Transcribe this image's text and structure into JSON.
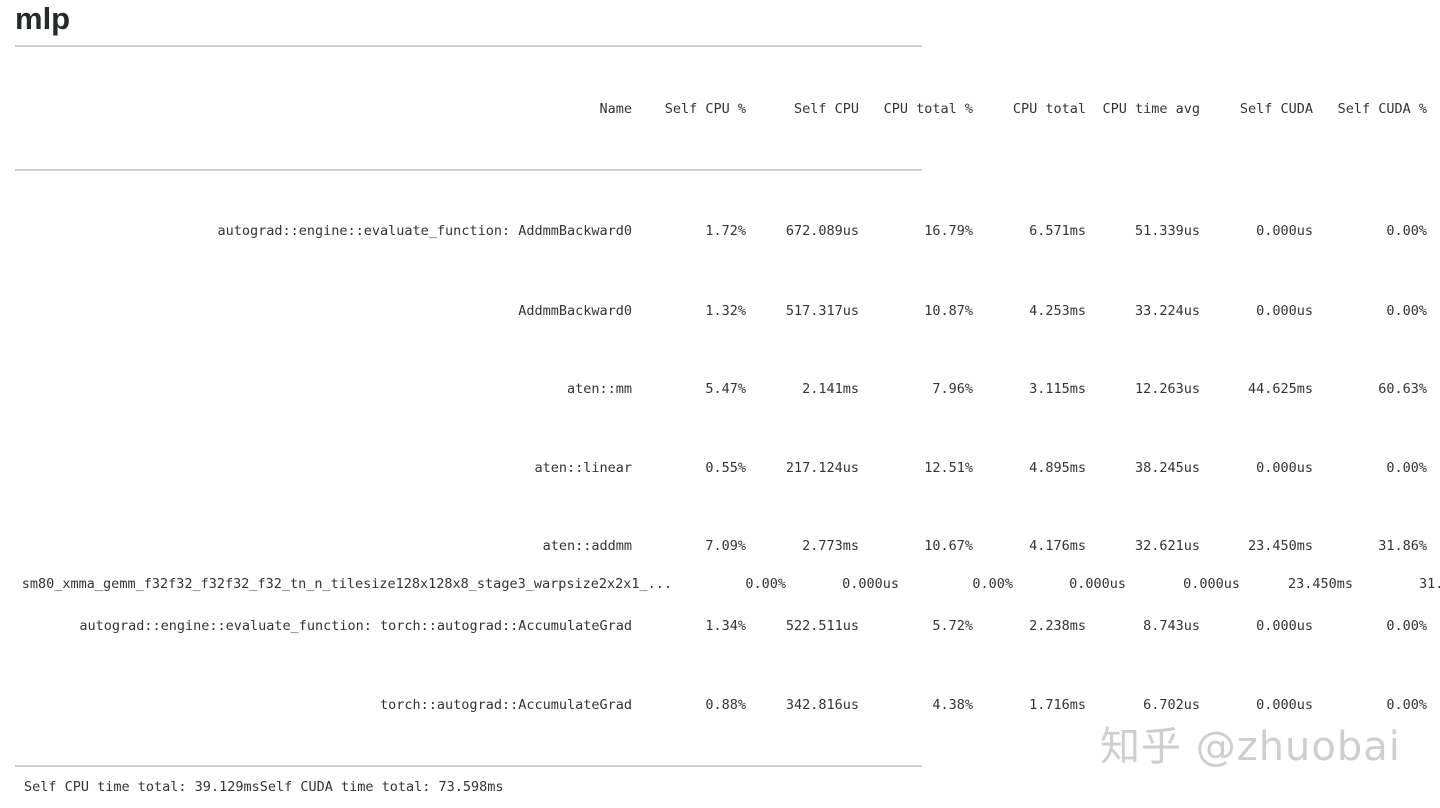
{
  "title": "mlp",
  "table": {
    "columns": [
      "Name",
      "Self CPU %",
      "Self CPU",
      "CPU total %",
      "CPU total",
      "CPU time avg",
      "Self CUDA",
      "Self CUDA %"
    ],
    "rows": [
      [
        "autograd::engine::evaluate_function: AddmmBackward0",
        "1.72%",
        "672.089us",
        "16.79%",
        "6.571ms",
        "51.339us",
        "0.000us",
        "0.00%"
      ],
      [
        "AddmmBackward0",
        "1.32%",
        "517.317us",
        "10.87%",
        "4.253ms",
        "33.224us",
        "0.000us",
        "0.00%"
      ],
      [
        "aten::mm",
        "5.47%",
        "2.141ms",
        "7.96%",
        "3.115ms",
        "12.263us",
        "44.625ms",
        "60.63%"
      ],
      [
        "aten::linear",
        "0.55%",
        "217.124us",
        "12.51%",
        "4.895ms",
        "38.245us",
        "0.000us",
        "0.00%"
      ],
      [
        "aten::addmm",
        "7.09%",
        "2.773ms",
        "10.67%",
        "4.176ms",
        "32.621us",
        "23.450ms",
        "31.86%"
      ],
      [
        "sm80_xmma_gemm_f32f32_f32f32_f32_tn_n_tilesize128x128x8_stage3_warpsize2x2x1_...",
        "0.00%",
        "0.000us",
        "0.00%",
        "0.000us",
        "0.000us",
        "23.450ms",
        "31."
      ],
      [
        "autograd::engine::evaluate_function: torch::autograd::AccumulateGrad",
        "1.34%",
        "522.511us",
        "5.72%",
        "2.238ms",
        "8.743us",
        "0.000us",
        "0.00%"
      ],
      [
        "torch::autograd::AccumulateGrad",
        "0.88%",
        "342.816us",
        "4.38%",
        "1.716ms",
        "6.702us",
        "0.000us",
        "0.00%"
      ]
    ]
  },
  "footer": "Self CPU time total: 39.129msSelf CUDA time total: 73.598ms",
  "watermark": "知乎 @zhuobai"
}
